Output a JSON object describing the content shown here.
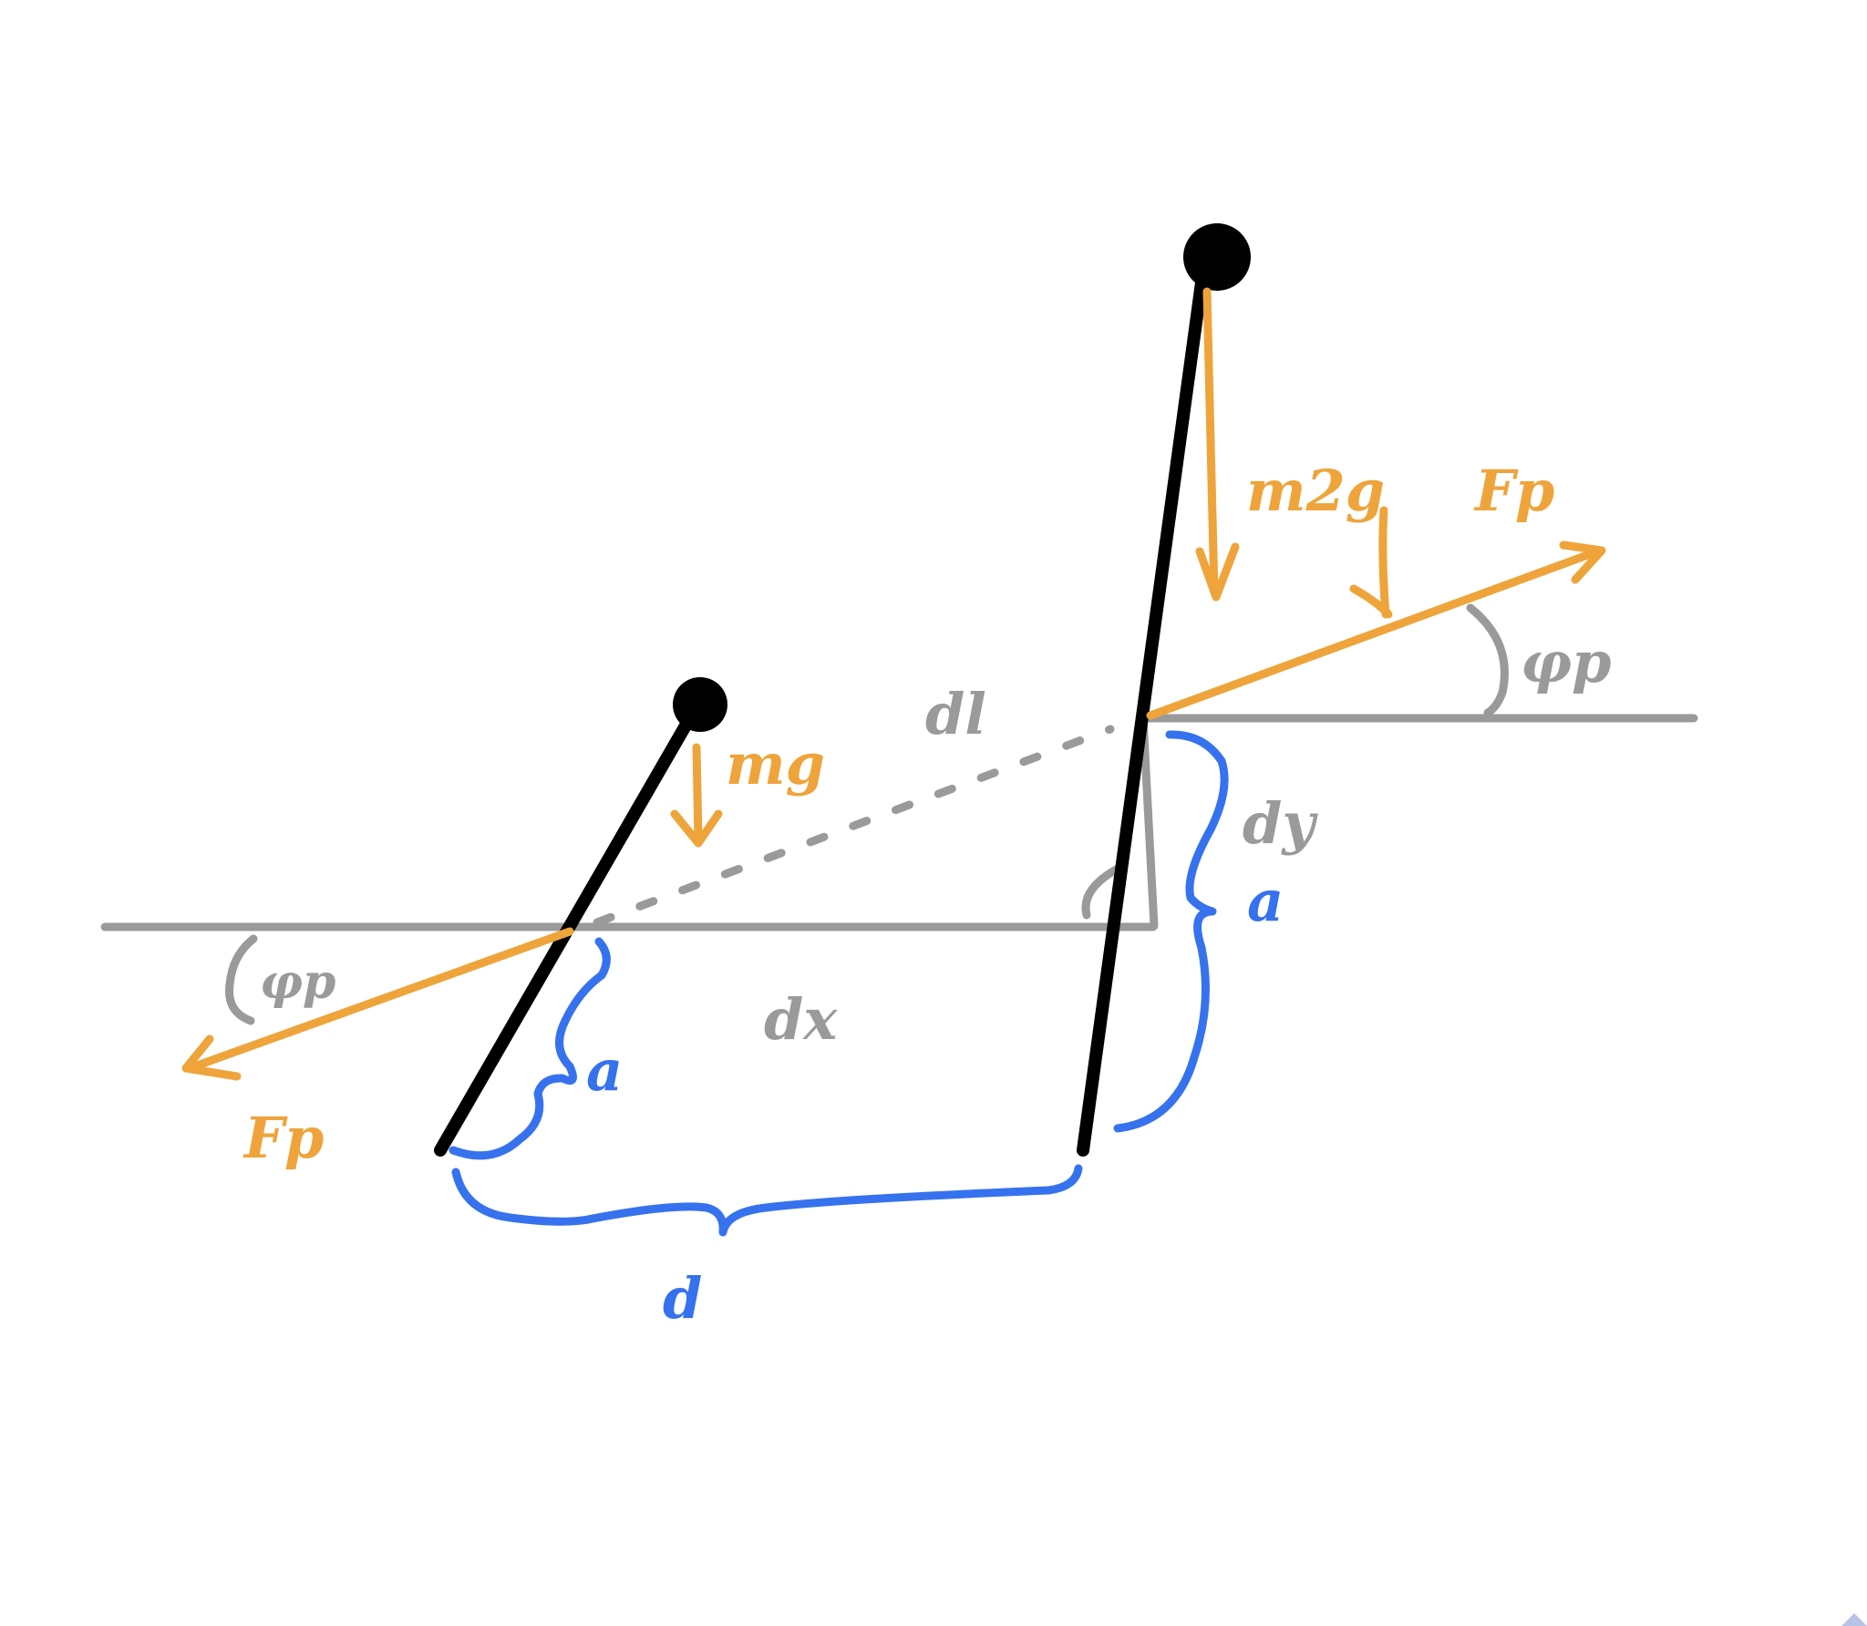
{
  "labels": {
    "m1g": "mg",
    "m2g": "m2g",
    "fp_right": "Fp",
    "fp_left": "Fp",
    "phi_right": "φp",
    "phi_left": "φp",
    "dl": "dl",
    "dx": "dx",
    "dy": "dy",
    "a_left": "a",
    "a_right": "a",
    "d": "d"
  },
  "colors": {
    "rod": "#000000",
    "force": "#eea43b",
    "construction": "#9a9a9a",
    "dimension": "#3672ee"
  }
}
